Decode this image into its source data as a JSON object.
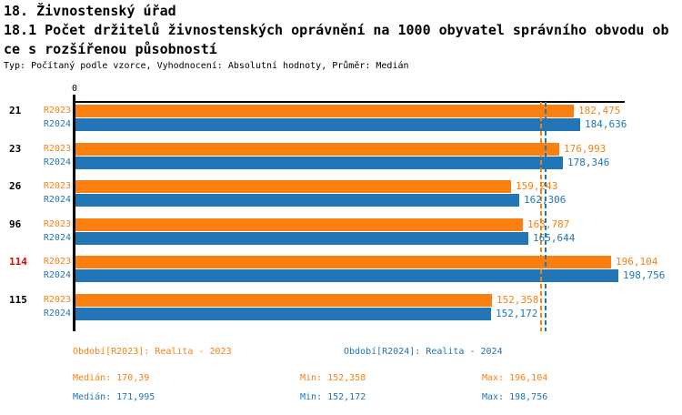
{
  "header": {
    "line1": "18. Živnostenský úřad",
    "line2": "18.1 Počet držitelů živnostenských oprávnění na 1000 obyvatel správního obvodu ob",
    "line3": "ce s rozšířenou působností",
    "meta": "Typ: Počítaný podle vzorce, Vyhodnocení: Absolutní hodnoty, Průměr: Medián"
  },
  "colors": {
    "r2023_orange": "#fb8010",
    "r2024_blue": "#2276b5",
    "highlight_red": "#e60000",
    "axis_black": "#000000"
  },
  "chart_data": {
    "type": "bar",
    "orientation": "horizontal",
    "title": "18.1 Počet držitelů živnostenských oprávnění na 1000 obyvatel správního obvodu obce s rozšířenou působností",
    "categories": [
      "21",
      "23",
      "26",
      "96",
      "114",
      "115"
    ],
    "highlighted_category": "114",
    "axis": {
      "zero_label": "0",
      "xlim": [
        0,
        201
      ],
      "grid": false
    },
    "series": [
      {
        "name": "R2023",
        "color": "#fb8010",
        "values": [
          182.475,
          176.993,
          159.243,
          163.787,
          196.104,
          152.358
        ],
        "labels": [
          "182,475",
          "176,993",
          "159,243",
          "163,787",
          "196,104",
          "152,358"
        ],
        "median": 170.39,
        "min": 152.358,
        "max": 196.104
      },
      {
        "name": "R2024",
        "color": "#2276b5",
        "values": [
          184.636,
          178.346,
          162.306,
          165.644,
          198.756,
          152.172
        ],
        "labels": [
          "184,636",
          "178,346",
          "162,306",
          "165,644",
          "198,756",
          "152,172"
        ],
        "median": 171.995,
        "min": 152.172,
        "max": 198.756
      }
    ],
    "legend_position": "bottom"
  },
  "legend": {
    "r2023_label": "Období[R2023]: Realita - 2023",
    "r2024_label": "Období[R2024]: Realita - 2024",
    "stats_2023": {
      "median": "Medián: 170,39",
      "min": "Min: 152,358",
      "max": "Max: 196,104"
    },
    "stats_2024": {
      "median": "Medián: 171,995",
      "min": "Min: 152,172",
      "max": "Max: 198,756"
    }
  }
}
